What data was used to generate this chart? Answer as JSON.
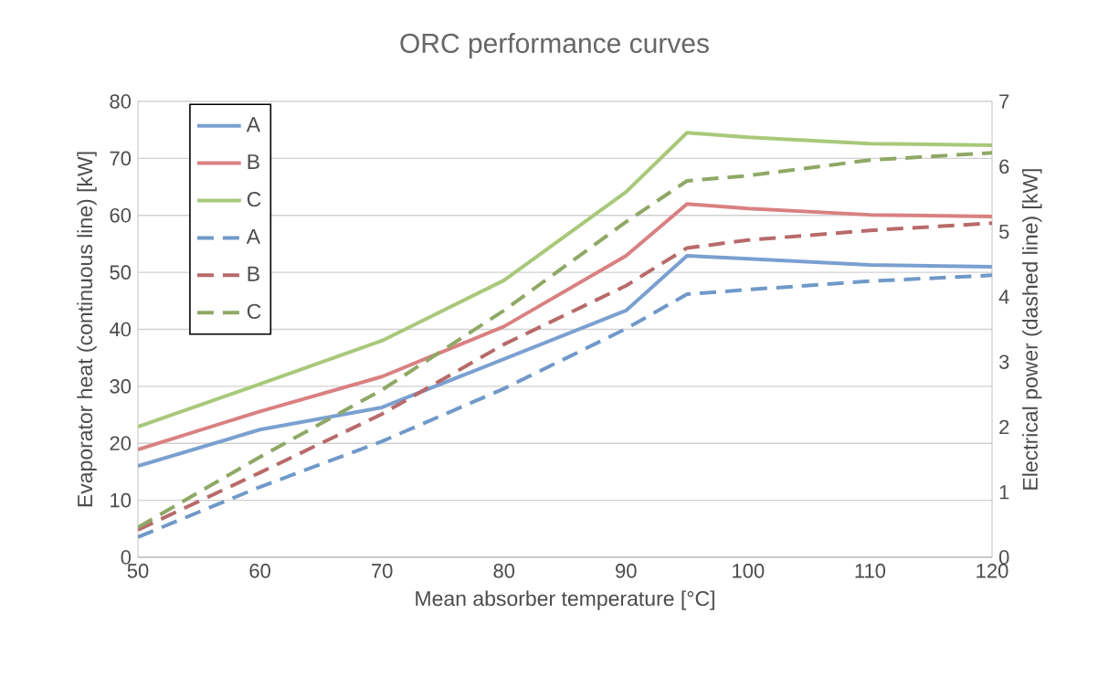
{
  "chart_data": {
    "type": "line",
    "title": "ORC performance curves",
    "xlabel": "Mean absorber temperature [°C]",
    "ylabel": "Evaporator heat (continuous line) [kW]",
    "y2label": "Electrical power (dashed line) [kW]",
    "x": [
      50,
      60,
      70,
      80,
      90,
      95,
      100,
      110,
      120
    ],
    "series": [
      {
        "name": "A",
        "color": "#7aa0d0",
        "line_style": "solid",
        "values": [
          16.0,
          22.4,
          26.3,
          34.8,
          43.3,
          52.9,
          52.4,
          51.3,
          51.0
        ]
      },
      {
        "name": "B",
        "color": "#d98080",
        "line_style": "solid",
        "values": [
          18.9,
          25.6,
          31.7,
          40.5,
          52.9,
          62.0,
          61.2,
          60.1,
          59.8
        ]
      },
      {
        "name": "C",
        "color": "#a9c87a",
        "line_style": "solid",
        "values": [
          22.9,
          30.4,
          38.0,
          48.6,
          64.1,
          74.5,
          73.7,
          72.6,
          72.3
        ]
      },
      {
        "name": "A",
        "color": "#7099c9",
        "line_style": "dashed",
        "axis": "y2",
        "values": [
          0.31,
          1.08,
          1.78,
          2.59,
          3.51,
          4.04,
          4.11,
          4.24,
          4.33
        ]
      },
      {
        "name": "B",
        "color": "#b86a6a",
        "line_style": "dashed",
        "axis": "y2",
        "values": [
          0.42,
          1.3,
          2.2,
          3.27,
          4.17,
          4.75,
          4.87,
          5.02,
          5.13
        ]
      },
      {
        "name": "C",
        "color": "#8fa865",
        "line_style": "dashed",
        "axis": "y2",
        "values": [
          0.46,
          1.54,
          2.57,
          3.79,
          5.15,
          5.78,
          5.86,
          6.1,
          6.21
        ]
      }
    ],
    "xlim": [
      50,
      120
    ],
    "xticks": [
      50,
      60,
      70,
      80,
      90,
      100,
      110,
      120
    ],
    "ylim": [
      0,
      80
    ],
    "yticks": [
      0,
      10,
      20,
      30,
      40,
      50,
      60,
      70,
      80
    ],
    "y2lim": [
      0,
      7
    ],
    "y2ticks": [
      0,
      1,
      2,
      3,
      4,
      5,
      6,
      7
    ],
    "grid": "y",
    "legend": "top left"
  }
}
